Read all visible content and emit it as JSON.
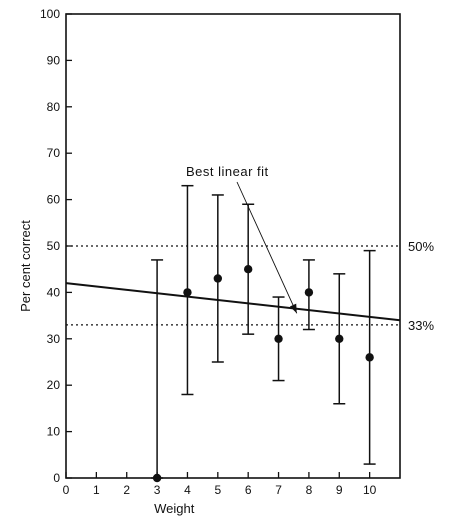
{
  "chart_data": {
    "type": "scatter",
    "title": "",
    "xlabel": "Weight",
    "ylabel": "Per cent correct",
    "xlim": [
      0,
      11
    ],
    "ylim": [
      0,
      100
    ],
    "xticks": [
      0,
      1,
      2,
      3,
      4,
      5,
      6,
      7,
      8,
      9,
      10
    ],
    "yticks": [
      0,
      10,
      20,
      30,
      40,
      50,
      60,
      70,
      80,
      90,
      100
    ],
    "grid": false,
    "points": [
      {
        "x": 3,
        "y": 0,
        "err_low": 0,
        "err_high": 47
      },
      {
        "x": 4,
        "y": 40,
        "err_low": 18,
        "err_high": 63
      },
      {
        "x": 5,
        "y": 43,
        "err_low": 25,
        "err_high": 61
      },
      {
        "x": 6,
        "y": 45,
        "err_low": 31,
        "err_high": 59
      },
      {
        "x": 7,
        "y": 30,
        "err_low": 21,
        "err_high": 39
      },
      {
        "x": 8,
        "y": 40,
        "err_low": 32,
        "err_high": 47
      },
      {
        "x": 9,
        "y": 30,
        "err_low": 16,
        "err_high": 44
      },
      {
        "x": 10,
        "y": 26,
        "err_low": 3,
        "err_high": 49
      }
    ],
    "fit_line": {
      "x": [
        0,
        11
      ],
      "y": [
        42,
        34
      ]
    },
    "reference_lines": [
      {
        "y": 50,
        "label": "50%"
      },
      {
        "y": 33,
        "label": "33%"
      }
    ],
    "annotation": {
      "text": "Best linear fit",
      "arrow_to": {
        "x": 7.6,
        "y": 35.5
      }
    }
  }
}
